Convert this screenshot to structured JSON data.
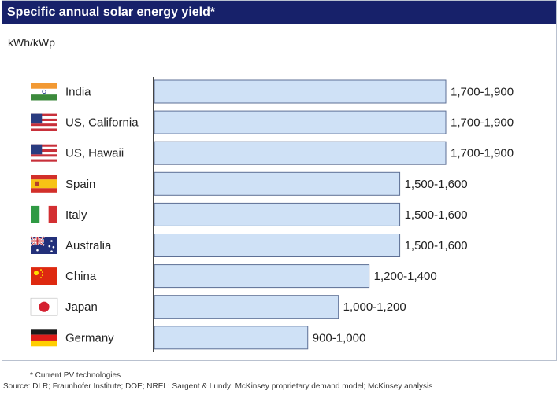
{
  "title": "Specific annual solar energy yield*",
  "footnote": "* Current PV technologies",
  "source": "Source: DLR; Fraunhofer Institute; DOE; NREL; Sargent & Lundy; McKinsey proprietary demand model; McKinsey analysis",
  "colors": {
    "title_bg": "#17216a",
    "bar_fill": "#cfe1f6",
    "bar_stroke": "#5d6f95"
  },
  "chart_data": {
    "type": "bar",
    "orientation": "horizontal",
    "ylabel": "kWh/kWp",
    "xlim": [
      0,
      1900
    ],
    "grid": false,
    "categories": [
      "India",
      "US, California",
      "US, Hawaii",
      "Spain",
      "Italy",
      "Australia",
      "China",
      "Japan",
      "Germany"
    ],
    "values": [
      1900,
      1900,
      1900,
      1600,
      1600,
      1600,
      1400,
      1200,
      1000
    ],
    "value_labels": [
      "1,700-1,900",
      "1,700-1,900",
      "1,700-1,900",
      "1,500-1,600",
      "1,500-1,600",
      "1,500-1,600",
      "1,200-1,400",
      "1,000-1,200",
      "900-1,000"
    ],
    "flags": [
      "flag-india",
      "flag-us",
      "flag-us",
      "flag-spain",
      "flag-italy",
      "flag-australia",
      "flag-china",
      "flag-japan",
      "flag-germany"
    ]
  }
}
